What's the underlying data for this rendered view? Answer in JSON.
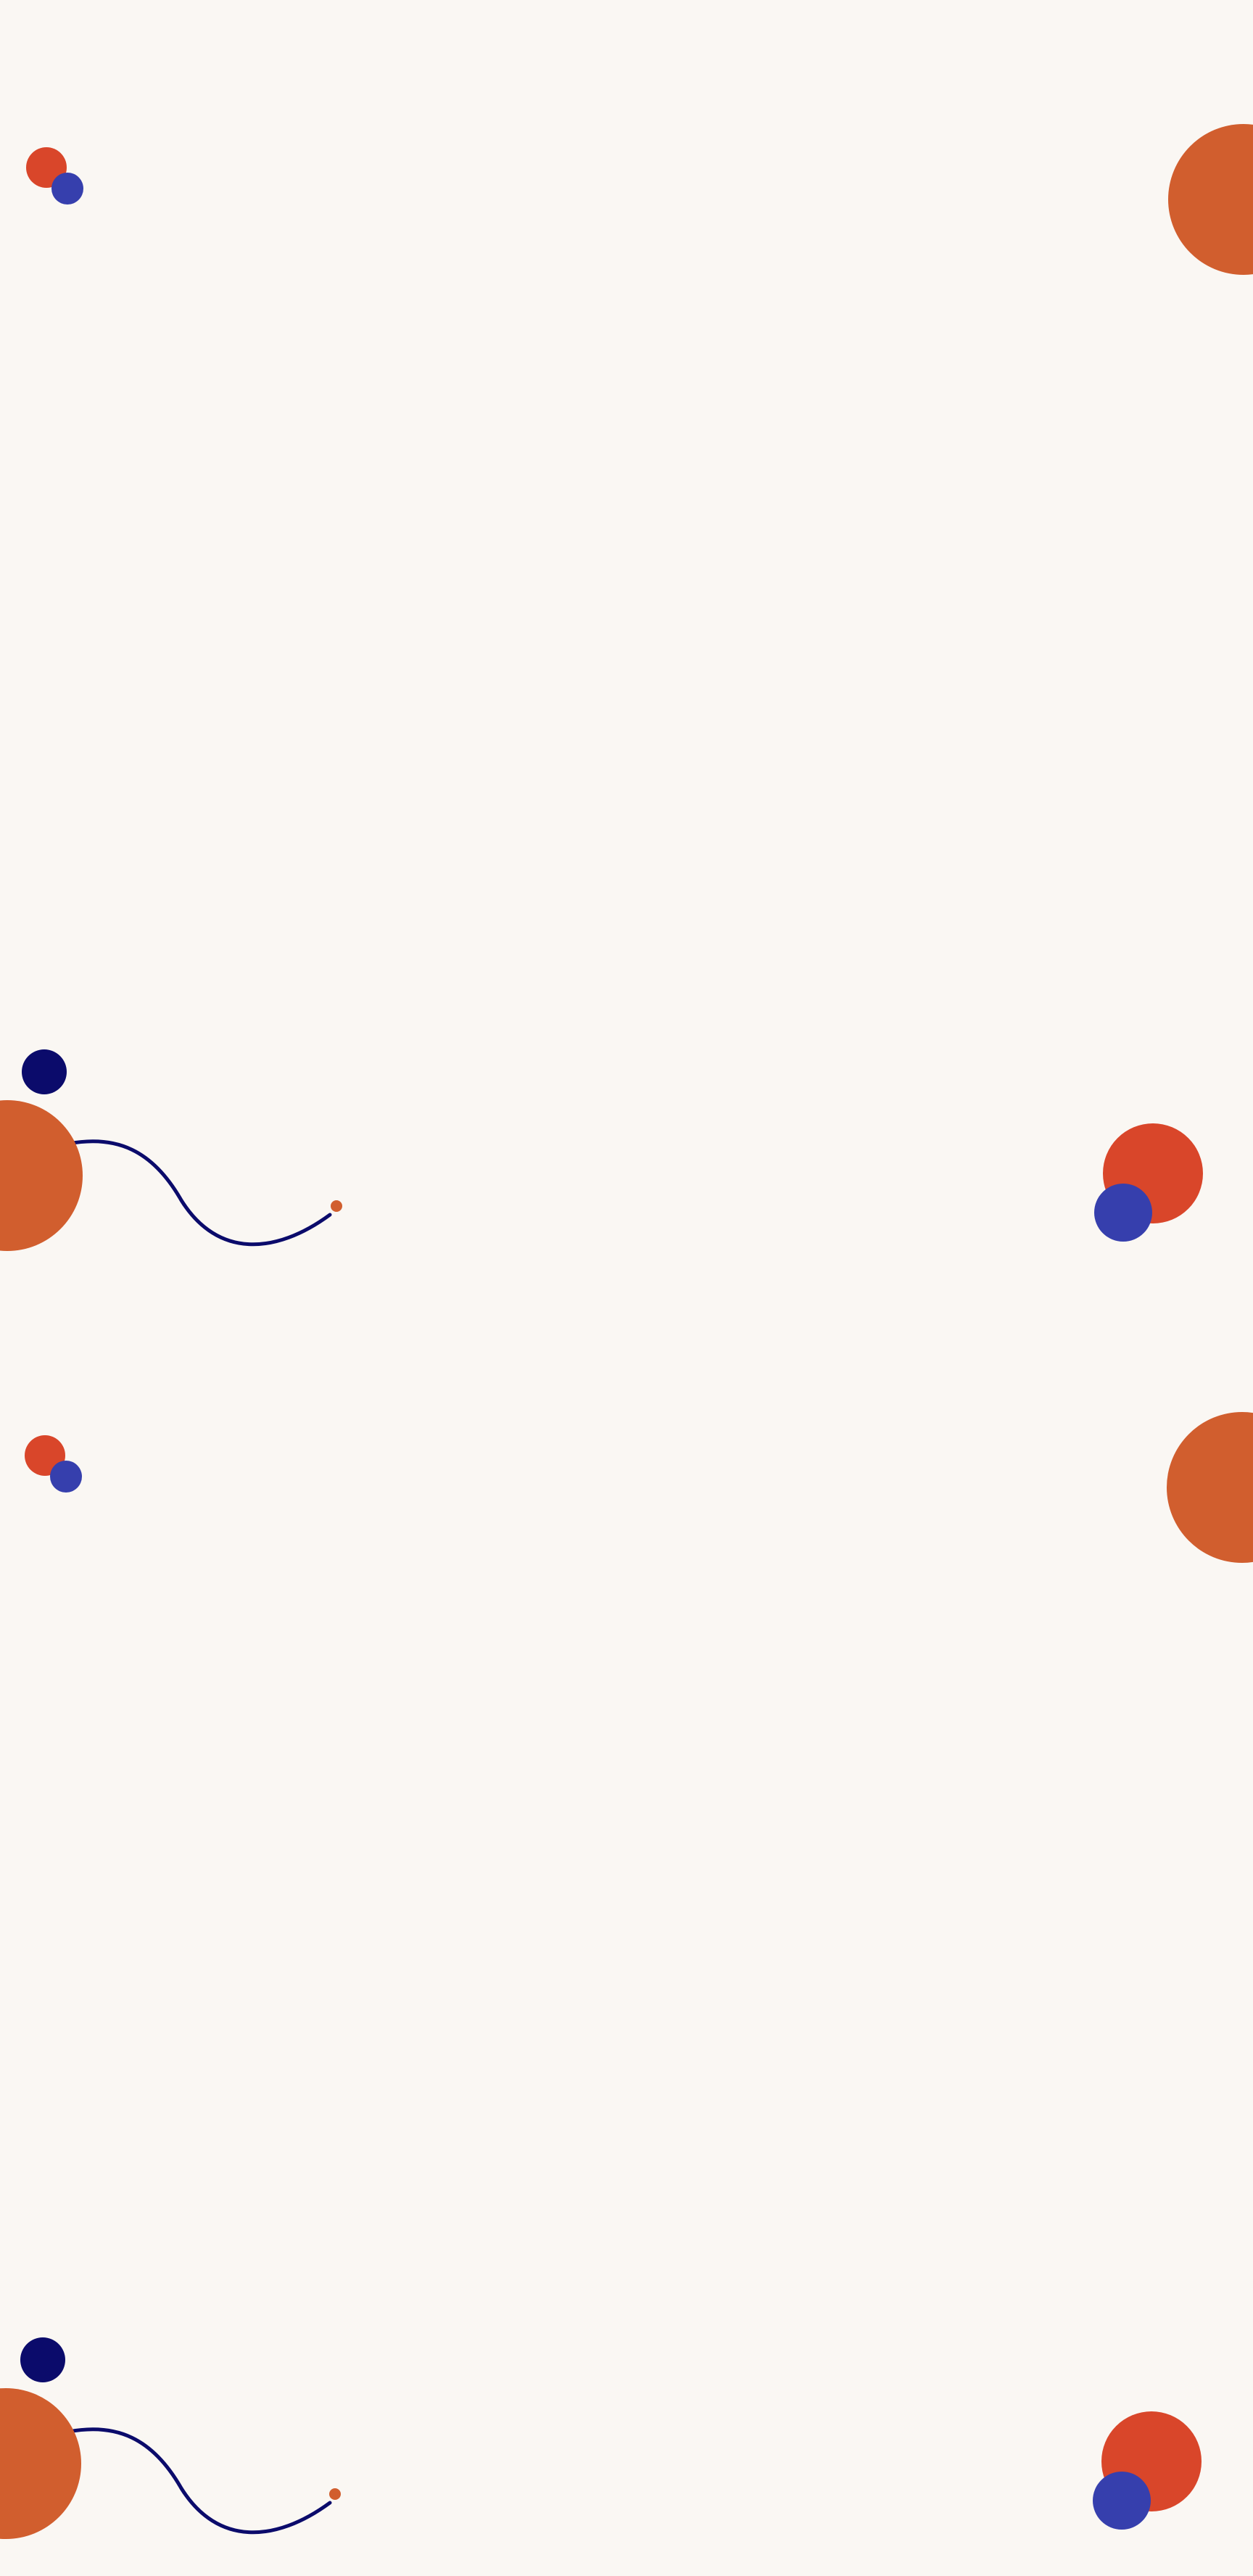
{
  "palette": {
    "background": "#FAF7F3",
    "burnt_orange": "#D15E2E",
    "red_orange": "#D9462A",
    "royal_blue": "#363FAD",
    "navy": "#0B0B6B"
  },
  "decorations": [
    "small-red-dot",
    "small-blue-dot",
    "large-orange-circle",
    "navy-dot",
    "orange-half-circle",
    "navy-squiggle-line",
    "red-orange-circle",
    "blue-circle"
  ]
}
